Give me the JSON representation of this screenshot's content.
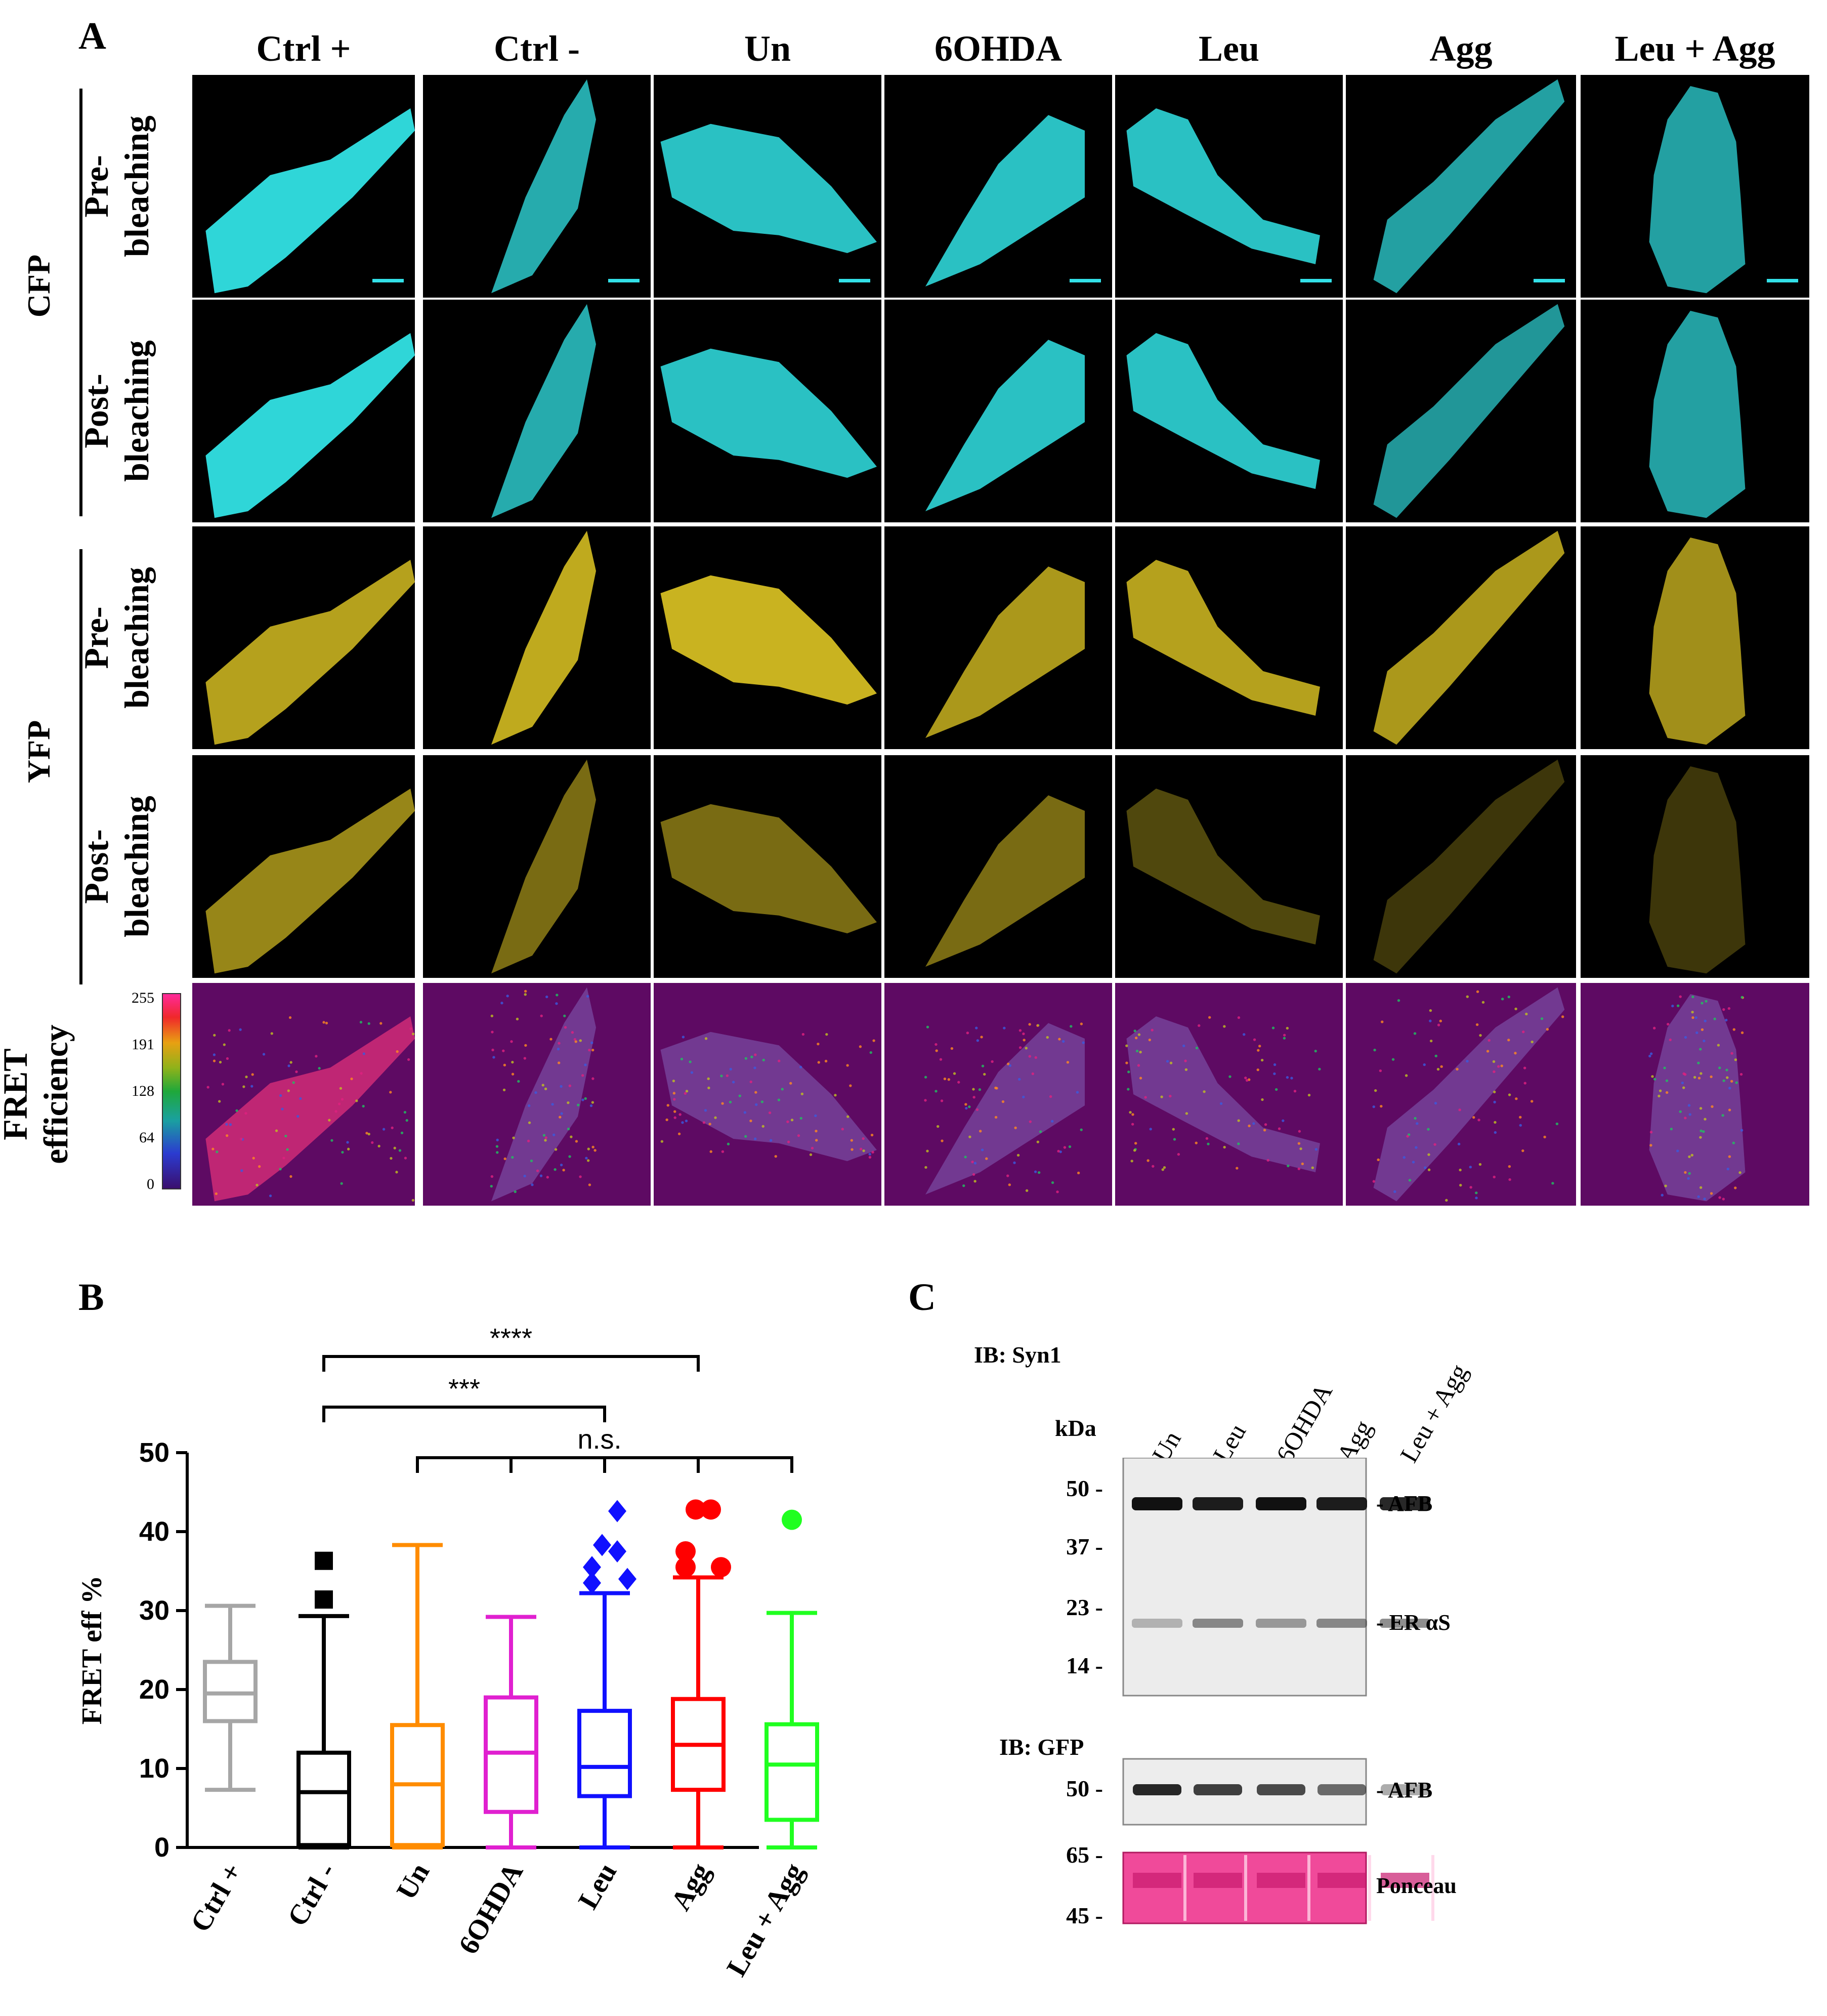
{
  "panel_labels": {
    "a": "A",
    "b": "B",
    "c": "C"
  },
  "panel_a": {
    "columns": [
      "Ctrl +",
      "Ctrl -",
      "Un",
      "6OHDA",
      "Leu",
      "Agg",
      "Leu + Agg"
    ],
    "groups": {
      "cfp": "CFP",
      "yfp": "YFP"
    },
    "rows": {
      "cfp_pre": "Pre-\nbleaching",
      "cfp_post": "Post-\nbleaching",
      "yfp_pre": "Pre-\nbleaching",
      "yfp_post": "Post-\nbleaching",
      "fret": "FRET\nefficiency"
    },
    "colorbar_ticks": [
      "255",
      "191",
      "128",
      "64",
      "0"
    ],
    "colors": {
      "cfp": "#2fd6d8",
      "yfp": "#c9b320",
      "fret_bg": "#5e0a63",
      "scalebar": "#33e0e8"
    }
  },
  "chart_data": {
    "type": "box",
    "ylabel": "FRET eff %",
    "ylim": [
      0,
      50
    ],
    "yticks": [
      0,
      10,
      20,
      30,
      40,
      50
    ],
    "categories": [
      "Ctrl +",
      "Ctrl -",
      "Un",
      "6OHDA",
      "Leu",
      "Agg",
      "Leu + Agg"
    ],
    "series": [
      {
        "category": "Ctrl +",
        "color": "#a6a6a6",
        "min": 7.3,
        "q1": 16,
        "median": 19.5,
        "q3": 23.5,
        "max": 30.6,
        "outliers": [],
        "marker": "none"
      },
      {
        "category": "Ctrl -",
        "color": "#000000",
        "min": 0,
        "q1": 0.3,
        "median": 7,
        "q3": 12,
        "max": 29.3,
        "outliers": [
          31.4,
          36.3
        ],
        "marker": "square"
      },
      {
        "category": "Un",
        "color": "#ff8c00",
        "min": 0,
        "q1": 0.3,
        "median": 8,
        "q3": 15.5,
        "max": 38.3,
        "outliers": [],
        "marker": "none"
      },
      {
        "category": "6OHDA",
        "color": "#e020d0",
        "min": 0,
        "q1": 4.5,
        "median": 12,
        "q3": 19,
        "max": 29.2,
        "outliers": [],
        "marker": "none"
      },
      {
        "category": "Leu",
        "color": "#1010ff",
        "min": 0,
        "q1": 6.5,
        "median": 10.2,
        "q3": 17.3,
        "max": 32.2,
        "outliers": [
          33.5,
          34,
          35.5,
          37.5,
          38.3,
          42.6
        ],
        "marker": "diamond"
      },
      {
        "category": "Agg",
        "color": "#ff0000",
        "min": 0,
        "q1": 7.3,
        "median": 13,
        "q3": 18.8,
        "max": 34.2,
        "outliers": [
          35.5,
          35.5,
          37.5,
          42.8,
          42.8
        ],
        "marker": "circle"
      },
      {
        "category": "Leu + Agg",
        "color": "#20ff20",
        "min": 0,
        "q1": 3.5,
        "median": 10.5,
        "q3": 15.6,
        "max": 29.7,
        "outliers": [
          41.5
        ],
        "marker": "circle"
      }
    ],
    "annotations": [
      {
        "label": "****",
        "from": "Ctrl -",
        "to": "Agg"
      },
      {
        "label": "***",
        "from": "Ctrl -",
        "to": "Leu"
      },
      {
        "label": "n.s.",
        "from": "Un",
        "to": "Leu + Agg"
      }
    ]
  },
  "panel_c": {
    "ib_syn": "IB: Syn1",
    "ib_gfp": "IB: GFP",
    "kda": "kDa",
    "lanes": [
      "Un",
      "Leu",
      "6OHDA",
      "Agg",
      "Leu + Agg"
    ],
    "mw_top": [
      "50",
      "37",
      "23",
      "14"
    ],
    "mw_gfp": [
      "50"
    ],
    "mw_ponceau": [
      "65",
      "45"
    ],
    "bands": {
      "afb": "AFB",
      "er": "ER αS",
      "afb2": "AFB",
      "ponceau": "Ponceau"
    },
    "syn_afb_intensity": [
      1,
      0.95,
      1,
      0.95,
      0.9
    ],
    "syn_er_intensity": [
      0.35,
      0.6,
      0.5,
      0.6,
      0.6
    ],
    "gfp_afb_intensity": [
      0.9,
      0.8,
      0.75,
      0.6,
      0.35
    ]
  }
}
